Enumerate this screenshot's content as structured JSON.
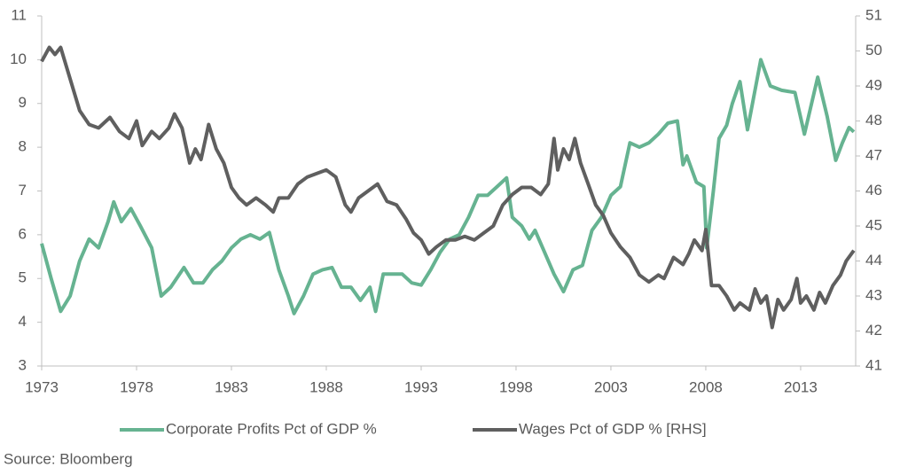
{
  "chart_data": {
    "type": "line",
    "source": "Source: Bloomberg",
    "xlim": [
      1973,
      2015.9
    ],
    "xticks": [
      1973,
      1978,
      1983,
      1988,
      1993,
      1998,
      2003,
      2008,
      2013
    ],
    "ylim": [
      3,
      11
    ],
    "yticks": [
      3,
      4,
      5,
      6,
      7,
      8,
      9,
      10,
      11
    ],
    "y2lim": [
      41,
      51
    ],
    "y2ticks": [
      41,
      42,
      43,
      44,
      45,
      46,
      47,
      48,
      49,
      50,
      51
    ],
    "legend": "bottom",
    "series": [
      {
        "name": "Corporate Profits Pct of GDP %",
        "color": "#66b391",
        "x": [
          1973,
          1973.5,
          1974,
          1974.5,
          1975,
          1975.5,
          1976,
          1976.5,
          1976.8,
          1977.2,
          1977.7,
          1978.2,
          1978.8,
          1979.3,
          1979.8,
          1980.5,
          1981,
          1981.5,
          1982,
          1982.5,
          1983,
          1983.5,
          1984,
          1984.5,
          1985,
          1985.5,
          1986,
          1986.3,
          1986.8,
          1987.3,
          1987.8,
          1988.3,
          1988.8,
          1989.3,
          1989.8,
          1990.3,
          1990.6,
          1991,
          1991.5,
          1992,
          1992.5,
          1993,
          1993.5,
          1994,
          1994.5,
          1995,
          1995.5,
          1996,
          1996.5,
          1997,
          1997.5,
          1997.8,
          1998.3,
          1998.7,
          1999,
          1999.5,
          2000,
          2000.5,
          2001,
          2001.5,
          2002,
          2002.5,
          2003,
          2003.5,
          2004,
          2004.5,
          2005,
          2005.5,
          2006,
          2006.5,
          2006.8,
          2007,
          2007.5,
          2007.9,
          2008.05,
          2008.4,
          2008.7,
          2009.1,
          2009.4,
          2009.8,
          2010.2,
          2010.9,
          2011.4,
          2012,
          2012.7,
          2013.2,
          2013.9,
          2014.4,
          2014.85,
          2015.2,
          2015.55,
          2015.8
        ],
        "values": [
          5.8,
          5.0,
          4.25,
          4.6,
          5.4,
          5.9,
          5.7,
          6.3,
          6.75,
          6.3,
          6.6,
          6.2,
          5.7,
          4.6,
          4.8,
          5.25,
          4.9,
          4.9,
          5.2,
          5.4,
          5.7,
          5.9,
          6.0,
          5.9,
          6.05,
          5.2,
          4.6,
          4.2,
          4.6,
          5.1,
          5.2,
          5.25,
          4.8,
          4.8,
          4.5,
          4.8,
          4.25,
          5.1,
          5.1,
          5.1,
          4.9,
          4.85,
          5.2,
          5.6,
          5.9,
          6.0,
          6.4,
          6.9,
          6.9,
          7.1,
          7.3,
          6.4,
          6.2,
          5.9,
          6.1,
          5.6,
          5.1,
          4.7,
          5.2,
          5.3,
          6.1,
          6.4,
          6.9,
          7.1,
          8.1,
          8.0,
          8.1,
          8.3,
          8.55,
          8.6,
          7.6,
          7.8,
          7.2,
          7.1,
          5.7,
          7.0,
          8.2,
          8.5,
          9.0,
          9.5,
          8.4,
          10.0,
          9.4,
          9.3,
          9.25,
          8.3,
          9.6,
          8.7,
          7.7,
          8.1,
          8.45,
          8.35
        ]
      },
      {
        "name": "Wages Pct of GDP % [RHS]",
        "color": "#5f5f5f",
        "axis": "y2",
        "x": [
          1973,
          1973.4,
          1973.7,
          1974,
          1974.5,
          1975,
          1975.5,
          1976,
          1976.6,
          1977.1,
          1977.6,
          1978,
          1978.3,
          1978.8,
          1979.2,
          1979.7,
          1980,
          1980.4,
          1980.8,
          1981.1,
          1981.4,
          1981.8,
          1982.2,
          1982.6,
          1983,
          1983.4,
          1983.8,
          1984.3,
          1984.8,
          1985.2,
          1985.5,
          1986,
          1986.5,
          1987,
          1987.5,
          1988,
          1988.5,
          1989,
          1989.3,
          1989.7,
          1990.2,
          1990.7,
          1991.2,
          1991.7,
          1992.2,
          1992.6,
          1993,
          1993.4,
          1993.8,
          1994.3,
          1994.8,
          1995.3,
          1995.8,
          1996.3,
          1996.8,
          1997.3,
          1997.8,
          1998.3,
          1998.8,
          1999.3,
          1999.7,
          2000,
          2000.2,
          2000.5,
          2000.8,
          2001.1,
          2001.4,
          2001.8,
          2002.2,
          2002.6,
          2003,
          2003.5,
          2004,
          2004.5,
          2005,
          2005.5,
          2005.8,
          2006.3,
          2006.8,
          2007.1,
          2007.4,
          2007.8,
          2008,
          2008.3,
          2008.7,
          2009.1,
          2009.5,
          2009.8,
          2010.3,
          2010.6,
          2010.9,
          2011.2,
          2011.5,
          2011.8,
          2012.1,
          2012.5,
          2012.8,
          2013,
          2013.3,
          2013.7,
          2014,
          2014.3,
          2014.7,
          2015.1,
          2015.4,
          2015.8
        ],
        "values": [
          49.7,
          50.1,
          49.9,
          50.1,
          49.2,
          48.3,
          47.9,
          47.8,
          48.1,
          47.7,
          47.5,
          48.0,
          47.3,
          47.7,
          47.5,
          47.8,
          48.2,
          47.8,
          46.8,
          47.2,
          46.9,
          47.9,
          47.2,
          46.8,
          46.1,
          45.8,
          45.6,
          45.8,
          45.6,
          45.4,
          45.8,
          45.8,
          46.2,
          46.4,
          46.5,
          46.6,
          46.4,
          45.6,
          45.4,
          45.8,
          46.0,
          46.2,
          45.7,
          45.6,
          45.2,
          44.8,
          44.6,
          44.2,
          44.4,
          44.6,
          44.6,
          44.7,
          44.6,
          44.8,
          45.0,
          45.6,
          45.9,
          46.1,
          46.1,
          45.9,
          46.2,
          47.5,
          46.6,
          47.2,
          46.9,
          47.5,
          46.8,
          46.2,
          45.6,
          45.3,
          44.8,
          44.4,
          44.1,
          43.6,
          43.4,
          43.6,
          43.5,
          44.1,
          43.9,
          44.2,
          44.6,
          44.3,
          44.9,
          43.3,
          43.3,
          43.0,
          42.6,
          42.8,
          42.6,
          43.2,
          42.8,
          43.0,
          42.1,
          42.9,
          42.6,
          42.9,
          43.5,
          42.8,
          43.0,
          42.6,
          43.1,
          42.8,
          43.3,
          43.6,
          44.0,
          44.3
        ]
      }
    ]
  }
}
